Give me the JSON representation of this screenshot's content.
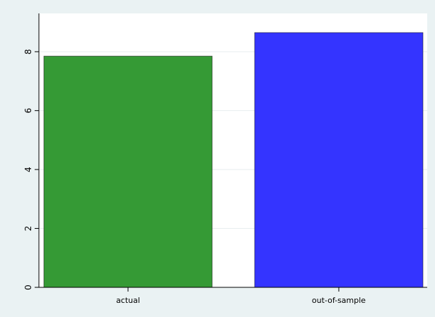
{
  "chart_data": {
    "type": "bar",
    "categories": [
      "actual",
      "out-of-sample"
    ],
    "values": [
      7.85,
      8.65
    ],
    "bar_colors": [
      "#359a35",
      "#3434ff"
    ],
    "yticks": [
      0,
      2,
      4,
      6,
      8
    ],
    "ylim": [
      0,
      9.3
    ],
    "grid": true,
    "title": "",
    "xlabel": "",
    "ylabel": ""
  },
  "colors": {
    "page_background": "#eaf2f3",
    "plot_background": "#ffffff",
    "gridline": "#e7eeef",
    "axis": "#000000"
  }
}
